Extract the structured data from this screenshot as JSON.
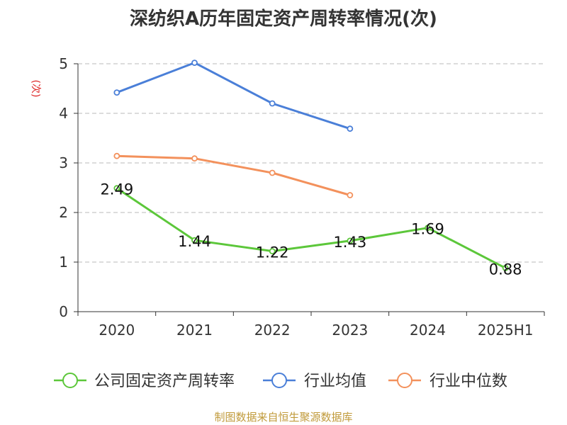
{
  "chart_data": {
    "type": "line",
    "title": "深纺织A历年固定资产周转率情况(次)",
    "ylabel": "(次)",
    "categories": [
      "2020",
      "2021",
      "2022",
      "2023",
      "2024",
      "2025H1"
    ],
    "ylim": [
      0,
      5
    ],
    "yticks": [
      "0",
      "1",
      "2",
      "3",
      "4",
      "5"
    ],
    "grid": true,
    "legend_position": "bottom",
    "series": [
      {
        "name": "公司固定资产周转率",
        "color": "#5cc73a",
        "values": [
          2.49,
          1.44,
          1.22,
          1.43,
          1.69,
          0.88
        ],
        "labels": [
          "2.49",
          "1.44",
          "1.22",
          "1.43",
          "1.69",
          "0.88"
        ]
      },
      {
        "name": "行业均值",
        "color": "#4a7fd8",
        "values": [
          4.42,
          5.02,
          4.2,
          3.69,
          null,
          null
        ]
      },
      {
        "name": "行业中位数",
        "color": "#f3915c",
        "values": [
          3.14,
          3.09,
          2.8,
          2.35,
          null,
          null
        ]
      }
    ]
  },
  "footer": {
    "source": "制图数据来自恒生聚源数据库"
  }
}
